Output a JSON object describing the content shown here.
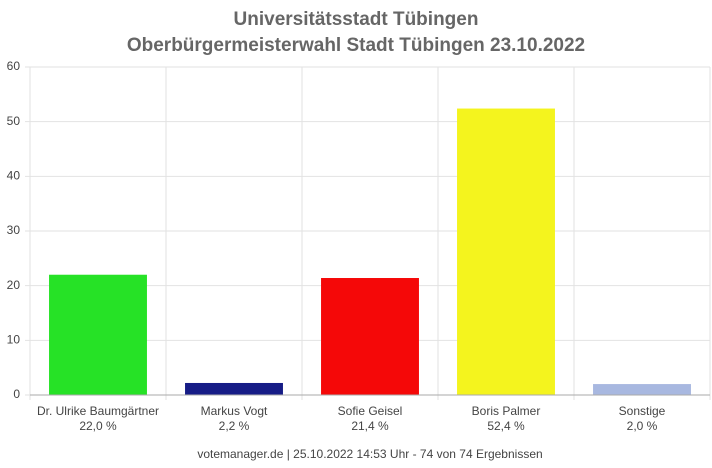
{
  "chart_data": {
    "type": "bar",
    "title": "Universitätsstadt Tübingen",
    "subtitle": "Oberbürgermeisterwahl Stadt Tübingen 23.10.2022",
    "categories": [
      "Dr. Ulrike Baumgärtner",
      "Markus Vogt",
      "Sofie Geisel",
      "Boris Palmer",
      "Sonstige"
    ],
    "values": [
      22.0,
      2.2,
      21.4,
      52.4,
      2.0
    ],
    "value_labels": [
      "22,0 %",
      "2,2 %",
      "21,4 %",
      "52,4 %",
      "2,0 %"
    ],
    "colors": [
      "#26e226",
      "#161c86",
      "#f50808",
      "#f4f41e",
      "#a8b8e0"
    ],
    "ylim": [
      0,
      60
    ],
    "yticks": [
      0,
      10,
      20,
      30,
      40,
      50,
      60
    ],
    "grid": true,
    "footer": "votemanager.de | 25.10.2022 14:53 Uhr - 74 von 74 Ergebnissen"
  }
}
